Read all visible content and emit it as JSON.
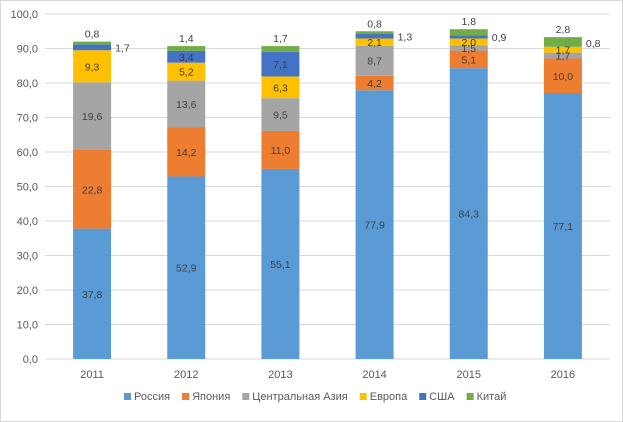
{
  "chart_data": {
    "type": "bar",
    "stacked": true,
    "categories": [
      "2011",
      "2012",
      "2013",
      "2014",
      "2015",
      "2016"
    ],
    "series": [
      {
        "name": "Россия",
        "color": "#5b9bd5",
        "values": [
          37.8,
          52.9,
          55.1,
          77.9,
          84.3,
          77.1
        ]
      },
      {
        "name": "Япония",
        "color": "#ed7d31",
        "values": [
          22.8,
          14.2,
          11.0,
          4.2,
          5.1,
          10.0
        ]
      },
      {
        "name": "Центральная Азия",
        "color": "#a5a5a5",
        "values": [
          19.6,
          13.6,
          9.5,
          8.7,
          1.5,
          1.7
        ]
      },
      {
        "name": "Европа",
        "color": "#ffc000",
        "values": [
          9.3,
          5.2,
          6.3,
          2.1,
          2.0,
          1.7
        ]
      },
      {
        "name": "США",
        "color": "#4472c4",
        "values": [
          1.7,
          3.4,
          7.1,
          1.3,
          0.9,
          0.0
        ]
      },
      {
        "name": "Китай",
        "color": "#70ad47",
        "values": [
          0.8,
          1.4,
          1.7,
          0.8,
          1.8,
          2.8
        ]
      }
    ],
    "data_labels": [
      [
        "37,8",
        "52,9",
        "55,1",
        "77,9",
        "84,3",
        "77,1"
      ],
      [
        "22,8",
        "14,2",
        "11,0",
        "4,2",
        "5,1",
        "10,0"
      ],
      [
        "19,6",
        "13,6",
        "9,5",
        "8,7",
        "1,5",
        "1,7"
      ],
      [
        "9,3",
        "5,2",
        "6,3",
        "2,1",
        "2,0",
        "1,7"
      ],
      [
        "1,7",
        "3,4",
        "7,1",
        "1,3",
        "0,9",
        ""
      ],
      [
        "0,8",
        "1,4",
        "1,7",
        "0,8",
        "1,8",
        "2,8"
      ]
    ],
    "extra_labels": [
      {
        "category": "2016",
        "text": "0,8"
      }
    ],
    "ylim": [
      0,
      100
    ],
    "yticks": [
      "0,0",
      "10,0",
      "20,0",
      "30,0",
      "40,0",
      "50,0",
      "60,0",
      "70,0",
      "80,0",
      "90,0",
      "100,0"
    ],
    "grid": true,
    "legend_position": "bottom"
  }
}
